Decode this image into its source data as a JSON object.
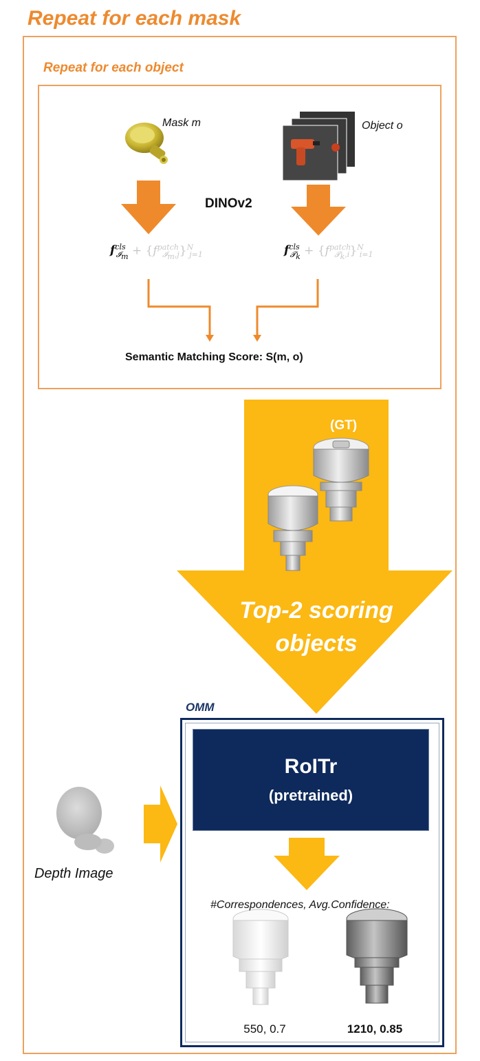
{
  "outer": {
    "title": "Repeat for each mask"
  },
  "inner": {
    "title": "Repeat for each object"
  },
  "matching": {
    "mask_label": "Mask m",
    "object_label": "Object o",
    "backbone_label": "DINOv2",
    "score_label": "Semantic Matching Score: S(m, o)"
  },
  "selection": {
    "gt_label": "(GT)",
    "top2_line1": "Top-2 scoring",
    "top2_line2": "objects"
  },
  "omm": {
    "label": "OMM",
    "model_title": "RoITr",
    "model_subtitle": "(pretrained)",
    "depth_label": "Depth Image",
    "correspondence_label": "#Correspondences,  Avg.Confidence:",
    "result_1": "550, 0.7",
    "result_2": "1210, 0.85"
  },
  "colors": {
    "orange_title": "#ED8A2F",
    "orange_frame": "#EDA15B",
    "orange_arrow": "#EE8A2C",
    "gold_arrow": "#FCB813",
    "navy": "#0E2A5C"
  }
}
